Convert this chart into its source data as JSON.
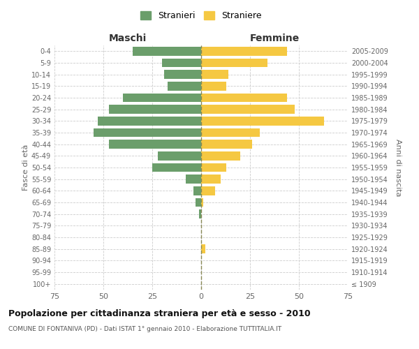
{
  "age_groups": [
    "100+",
    "95-99",
    "90-94",
    "85-89",
    "80-84",
    "75-79",
    "70-74",
    "65-69",
    "60-64",
    "55-59",
    "50-54",
    "45-49",
    "40-44",
    "35-39",
    "30-34",
    "25-29",
    "20-24",
    "15-19",
    "10-14",
    "5-9",
    "0-4"
  ],
  "birth_years": [
    "≤ 1909",
    "1910-1914",
    "1915-1919",
    "1920-1924",
    "1925-1929",
    "1930-1934",
    "1935-1939",
    "1940-1944",
    "1945-1949",
    "1950-1954",
    "1955-1959",
    "1960-1964",
    "1965-1969",
    "1970-1974",
    "1975-1979",
    "1980-1984",
    "1985-1989",
    "1990-1994",
    "1995-1999",
    "2000-2004",
    "2005-2009"
  ],
  "maschi": [
    0,
    0,
    0,
    0,
    0,
    0,
    1,
    3,
    4,
    8,
    25,
    22,
    47,
    55,
    53,
    47,
    40,
    17,
    19,
    20,
    35
  ],
  "femmine": [
    0,
    0,
    0,
    2,
    0,
    0,
    0,
    1,
    7,
    10,
    13,
    20,
    26,
    30,
    63,
    48,
    44,
    13,
    14,
    34,
    44
  ],
  "maschi_color": "#6b9e6b",
  "femmine_color": "#f5c842",
  "background_color": "#ffffff",
  "grid_color": "#cccccc",
  "title": "Popolazione per cittadinanza straniera per età e sesso - 2010",
  "subtitle": "COMUNE DI FONTANIVA (PD) - Dati ISTAT 1° gennaio 2010 - Elaborazione TUTTITALIA.IT",
  "ylabel_left": "Fasce di età",
  "ylabel_right": "Anni di nascita",
  "xlabel_maschi": "Maschi",
  "xlabel_femmine": "Femmine",
  "legend_maschi": "Stranieri",
  "legend_femmine": "Straniere",
  "xlim": 75,
  "bar_height": 0.75
}
